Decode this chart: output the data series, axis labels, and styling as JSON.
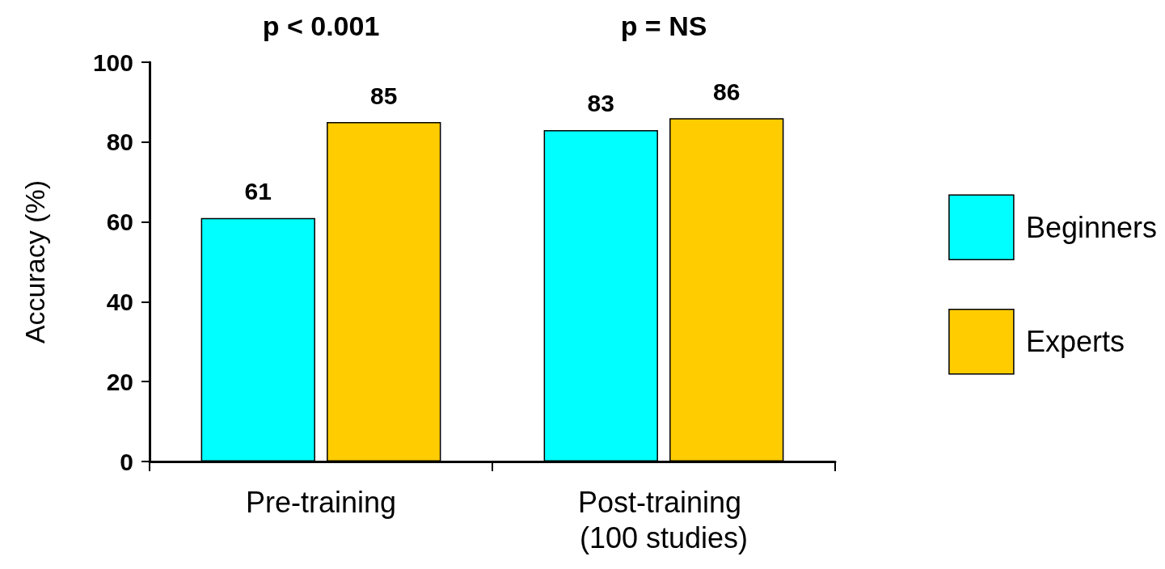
{
  "chart_data": {
    "type": "bar",
    "ylabel": "Accuracy (%)",
    "categories": [
      "Pre-training",
      "Post-training (100 studies)"
    ],
    "series": [
      {
        "name": "Beginners",
        "color": "#00ffff",
        "values": [
          61,
          83
        ]
      },
      {
        "name": "Experts",
        "color": "#ffcc00",
        "values": [
          85,
          86
        ]
      }
    ],
    "ylim": [
      0,
      100
    ],
    "yticks": [
      0,
      20,
      40,
      60,
      80,
      100
    ],
    "grid": false,
    "legend": "right",
    "data_labels": true,
    "annotations": [
      "p < 0.001",
      "p = NS"
    ]
  }
}
